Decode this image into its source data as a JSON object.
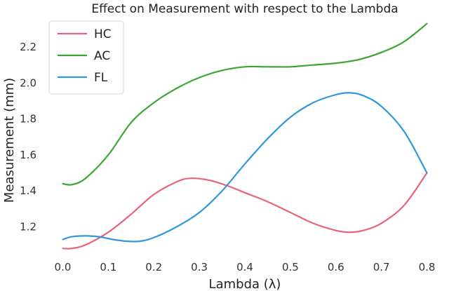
{
  "chart_data": {
    "type": "line",
    "title": "Effect on Measurement with respect to the  Lambda",
    "xlabel": "Lambda (λ)",
    "ylabel": "Measurement (mm)",
    "xlim": [
      -0.03,
      0.83
    ],
    "ylim": [
      1.05,
      2.36
    ],
    "x_ticks": [
      "0.0",
      "0.1",
      "0.2",
      "0.3",
      "0.4",
      "0.5",
      "0.6",
      "0.7",
      "0.8"
    ],
    "y_ticks": [
      "1.2",
      "1.4",
      "1.6",
      "1.8",
      "2.0",
      "2.2"
    ],
    "grid": false,
    "legend_position": "top-left",
    "series": [
      {
        "name": "HC",
        "color": "#e8637a",
        "x": [
          0.0,
          0.02,
          0.05,
          0.1,
          0.15,
          0.2,
          0.25,
          0.28,
          0.32,
          0.36,
          0.4,
          0.45,
          0.5,
          0.55,
          0.6,
          0.63,
          0.66,
          0.7,
          0.75,
          0.8
        ],
        "y": [
          1.08,
          1.08,
          1.1,
          1.17,
          1.27,
          1.38,
          1.45,
          1.47,
          1.46,
          1.43,
          1.39,
          1.34,
          1.28,
          1.22,
          1.18,
          1.17,
          1.18,
          1.22,
          1.32,
          1.5
        ]
      },
      {
        "name": "AC",
        "color": "#3ca633",
        "x": [
          0.0,
          0.02,
          0.05,
          0.1,
          0.15,
          0.2,
          0.25,
          0.3,
          0.35,
          0.4,
          0.45,
          0.5,
          0.55,
          0.6,
          0.65,
          0.7,
          0.75,
          0.8
        ],
        "y": [
          1.44,
          1.435,
          1.47,
          1.6,
          1.78,
          1.89,
          1.97,
          2.03,
          2.07,
          2.09,
          2.09,
          2.09,
          2.1,
          2.11,
          2.13,
          2.17,
          2.23,
          2.33
        ]
      },
      {
        "name": "FL",
        "color": "#2e97dd",
        "x": [
          0.0,
          0.02,
          0.05,
          0.08,
          0.11,
          0.14,
          0.17,
          0.2,
          0.25,
          0.3,
          0.35,
          0.4,
          0.45,
          0.5,
          0.55,
          0.6,
          0.63,
          0.66,
          0.7,
          0.75,
          0.8
        ],
        "y": [
          1.13,
          1.145,
          1.15,
          1.145,
          1.13,
          1.12,
          1.12,
          1.14,
          1.2,
          1.28,
          1.4,
          1.55,
          1.69,
          1.81,
          1.89,
          1.935,
          1.945,
          1.93,
          1.87,
          1.73,
          1.5
        ]
      }
    ]
  }
}
